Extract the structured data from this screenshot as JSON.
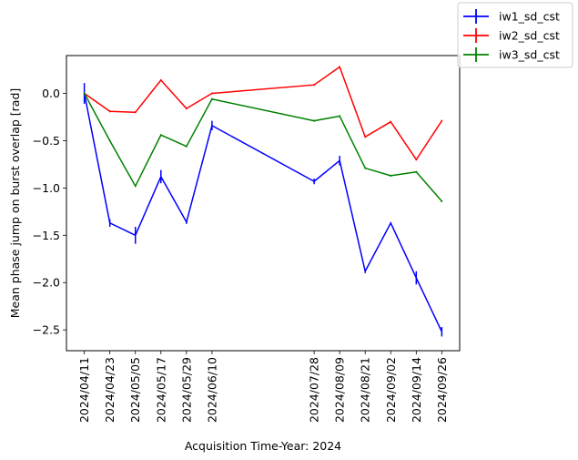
{
  "chart_data": {
    "type": "line",
    "title": "",
    "xlabel": "Acquisition Time-Year: 2024",
    "ylabel": "Mean phase jump on burst overlap [rad]",
    "x": [
      "2024-04-11",
      "2024-04-23",
      "2024-05-05",
      "2024-05-17",
      "2024-05-29",
      "2024-06-10",
      "2024-07-28",
      "2024-08-09",
      "2024-08-21",
      "2024-09-02",
      "2024-09-14",
      "2024-09-26"
    ],
    "xtick_labels": [
      "2024/04/11",
      "2024/04/23",
      "2024/05/05",
      "2024/05/17",
      "2024/05/29",
      "2024/06/10",
      "2024/07/28",
      "2024/08/09",
      "2024/08/21",
      "2024/09/02",
      "2024/09/14",
      "2024/09/26"
    ],
    "yticks": [
      0.0,
      -0.5,
      -1.0,
      -1.5,
      -2.0,
      -2.5
    ],
    "ytick_labels": [
      "0.0",
      "−0.5",
      "−1.0",
      "−1.5",
      "−2.0",
      "−2.5"
    ],
    "ylim": [
      -2.72,
      0.4
    ],
    "grid": false,
    "legend_position": "top-right outside",
    "series": [
      {
        "name": "iw1_sd_cst",
        "color": "#0000ff",
        "values": [
          0.0,
          -1.37,
          -1.5,
          -0.88,
          -1.36,
          -0.34,
          -0.93,
          -0.71,
          -1.88,
          -1.37,
          -1.95,
          -2.52
        ],
        "errors": [
          0.11,
          0.04,
          0.09,
          0.07,
          0.02,
          0.05,
          0.03,
          0.05,
          0.02,
          0.01,
          0.07,
          0.05
        ]
      },
      {
        "name": "iw2_sd_cst",
        "color": "#ff0000",
        "values": [
          0.0,
          -0.19,
          -0.2,
          0.14,
          -0.16,
          0.0,
          0.09,
          0.28,
          -0.46,
          -0.3,
          -0.7,
          -0.29
        ],
        "errors": [
          0.01,
          0.01,
          0.01,
          0.01,
          0.01,
          0.01,
          0.01,
          0.01,
          0.01,
          0.01,
          0.01,
          0.01
        ]
      },
      {
        "name": "iw3_sd_cst",
        "color": "#008000",
        "values": [
          0.0,
          -0.5,
          -0.98,
          -0.44,
          -0.56,
          -0.06,
          -0.29,
          -0.24,
          -0.79,
          -0.87,
          -0.83,
          -1.14
        ],
        "errors": [
          0.01,
          0.01,
          0.01,
          0.01,
          0.01,
          0.01,
          0.01,
          0.01,
          0.01,
          0.01,
          0.01,
          0.01
        ]
      }
    ]
  }
}
